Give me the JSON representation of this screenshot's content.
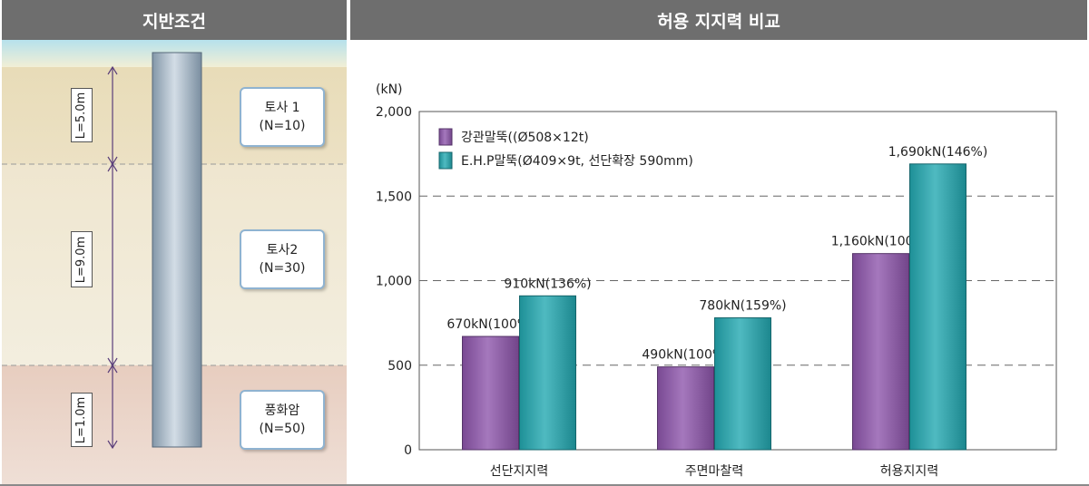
{
  "left_panel": {
    "title": "지반조건",
    "layers": [
      {
        "name": "토사 1",
        "n_value": "(N=10)",
        "length_label": "L=5.0m"
      },
      {
        "name": "토사2",
        "n_value": "(N=30)",
        "length_label": "L=9.0m"
      },
      {
        "name": "풍화암",
        "n_value": "(N=50)",
        "length_label": "L=1.0m"
      }
    ]
  },
  "right_panel": {
    "title": "허용 지지력 비교"
  },
  "chart_data": {
    "type": "bar",
    "title": "허용 지지력 비교",
    "ylabel": "(kN)",
    "ylim": [
      0,
      2000
    ],
    "yticks": [
      0,
      500,
      1000,
      1500,
      2000
    ],
    "ytick_labels": [
      "0",
      "500",
      "1,000",
      "1,500",
      "2,000"
    ],
    "grid": "horizontal dashed",
    "legend_position": "top-left",
    "categories": [
      "선단지지력",
      "주면마찰력",
      "허용지지력"
    ],
    "series": [
      {
        "name": "강관말뚝((Ø508×12t)",
        "color": "#8e56ad",
        "values": [
          670,
          490,
          1160
        ],
        "labels": [
          "670kN(100%)",
          "490kN(100%)",
          "1,160kN(100%)"
        ]
      },
      {
        "name": "E.H.P말뚝(Ø409×9t, 선단확장 590mm)",
        "color": "#23a9b2",
        "values": [
          910,
          780,
          1690
        ],
        "labels": [
          "910kN(136%)",
          "780kN(159%)",
          "1,690kN(146%)"
        ]
      }
    ]
  }
}
